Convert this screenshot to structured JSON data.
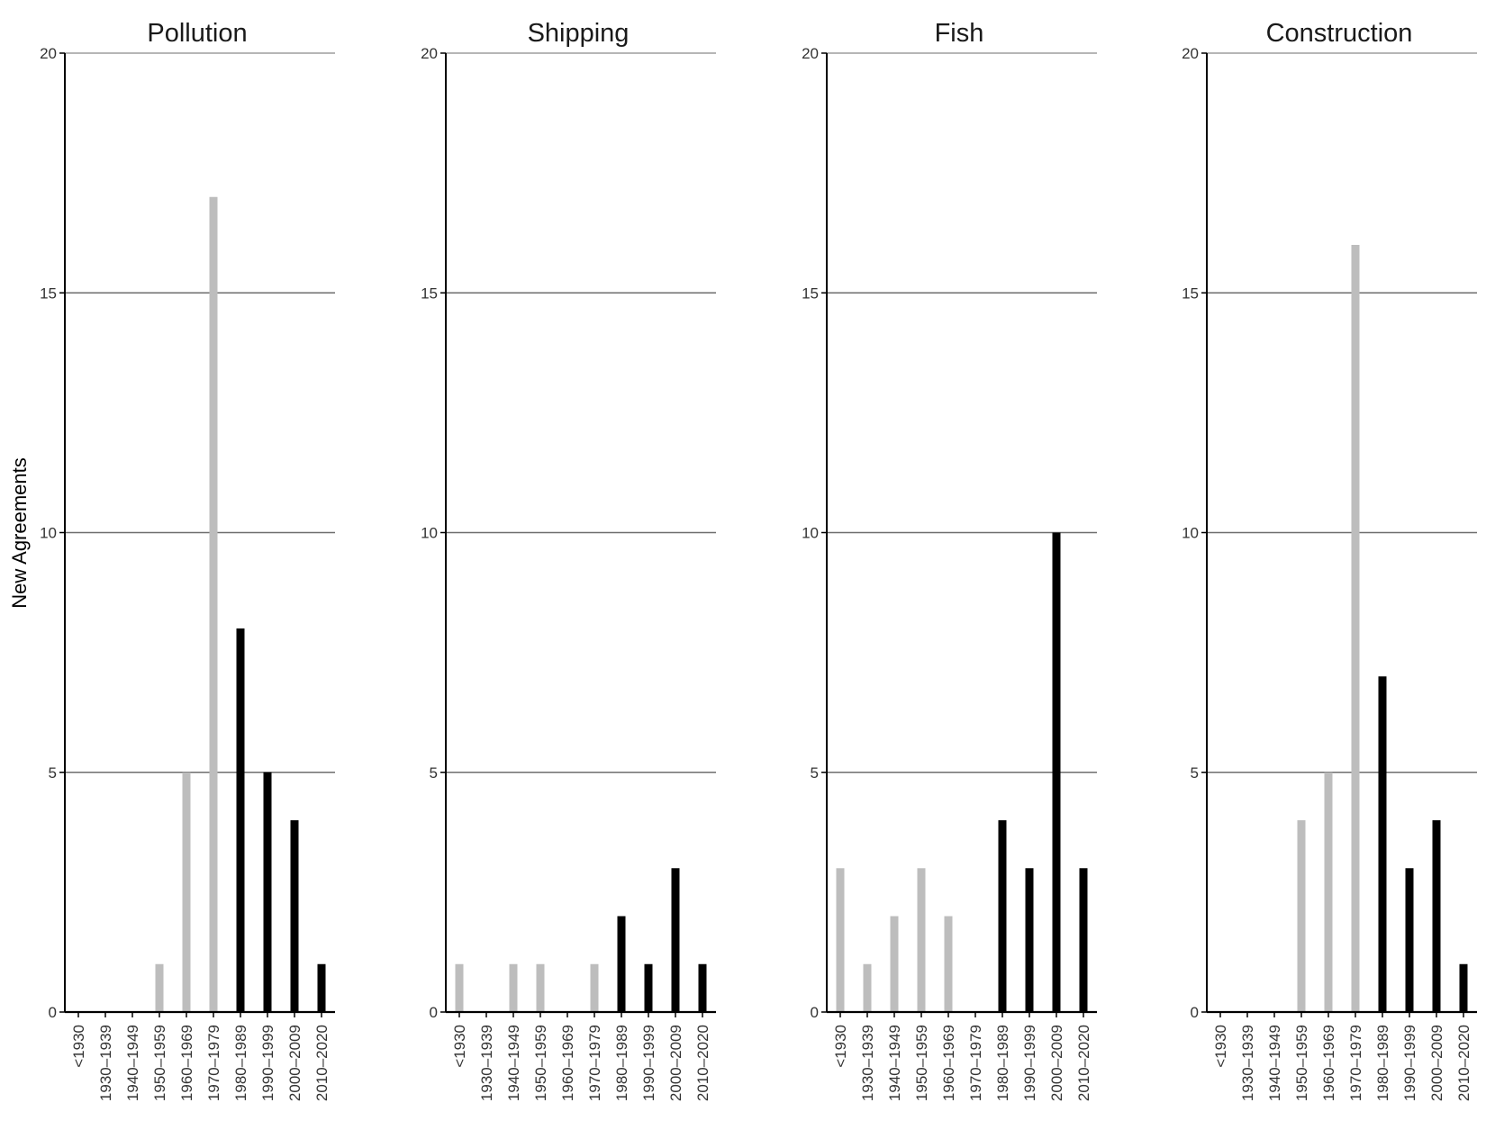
{
  "chart_data": {
    "type": "bar",
    "ylabel": "New Agreements",
    "ylim": [
      0,
      20
    ],
    "yticks": [
      0,
      5,
      10,
      15,
      20
    ],
    "grid": "horizontal",
    "categories": [
      "<1930",
      "1930–1939",
      "1940–1949",
      "1950–1959",
      "1960–1969",
      "1970–1979",
      "1980–1989",
      "1990–1999",
      "2000–2009",
      "2010–2020"
    ],
    "colors": {
      "early": "#bdbdbd",
      "late": "#000000"
    },
    "bar_color_keys": [
      "early",
      "early",
      "early",
      "early",
      "early",
      "early",
      "late",
      "late",
      "late",
      "late"
    ],
    "panels": [
      {
        "title": "Pollution",
        "values": [
          0,
          0,
          0,
          1,
          5,
          17,
          8,
          5,
          4,
          1
        ]
      },
      {
        "title": "Shipping",
        "values": [
          1,
          0,
          1,
          1,
          0,
          1,
          2,
          1,
          3,
          1
        ]
      },
      {
        "title": "Fish",
        "values": [
          3,
          1,
          2,
          3,
          2,
          0,
          4,
          3,
          10,
          3
        ]
      },
      {
        "title": "Construction",
        "values": [
          0,
          0,
          0,
          4,
          5,
          16,
          7,
          3,
          4,
          1
        ]
      }
    ]
  }
}
